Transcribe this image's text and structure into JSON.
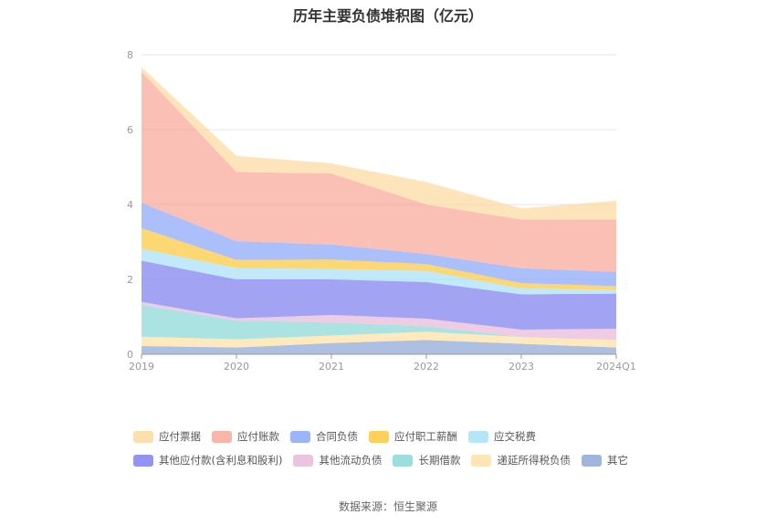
{
  "chart_data": {
    "type": "area",
    "stacked": true,
    "title": "历年主要负债堆积图（亿元）",
    "x": [
      "2019",
      "2020",
      "2021",
      "2022",
      "2023",
      "2024Q1"
    ],
    "ylim": [
      0,
      8
    ],
    "yticks": [
      0,
      2,
      4,
      6,
      8
    ],
    "grid": true,
    "legend_position": "bottom",
    "series": [
      {
        "name": "其它",
        "color": "#8fa8d6",
        "values": [
          0.22,
          0.18,
          0.3,
          0.38,
          0.28,
          0.18
        ]
      },
      {
        "name": "递延所得税负债",
        "color": "#ffe0a3",
        "values": [
          0.25,
          0.22,
          0.2,
          0.22,
          0.18,
          0.2
        ]
      },
      {
        "name": "长期借款",
        "color": "#8ad8d8",
        "values": [
          0.85,
          0.5,
          0.35,
          0.15,
          0.0,
          0.0
        ]
      },
      {
        "name": "其他流动负债",
        "color": "#e8b8d8",
        "values": [
          0.08,
          0.06,
          0.2,
          0.2,
          0.2,
          0.3
        ]
      },
      {
        "name": "其他应付款(含利息和股利)",
        "color": "#8080f0",
        "values": [
          1.1,
          1.04,
          0.95,
          0.98,
          0.94,
          0.94
        ]
      },
      {
        "name": "应交税费",
        "color": "#a8e0f8",
        "values": [
          0.32,
          0.3,
          0.28,
          0.3,
          0.16,
          0.1
        ]
      },
      {
        "name": "应付职工薪酬",
        "color": "#fcc83c",
        "values": [
          0.55,
          0.22,
          0.25,
          0.18,
          0.14,
          0.1
        ]
      },
      {
        "name": "合同负债",
        "color": "#8aa8f8",
        "values": [
          0.68,
          0.5,
          0.4,
          0.27,
          0.4,
          0.38
        ]
      },
      {
        "name": "应付账款",
        "color": "#f8a898",
        "values": [
          3.5,
          1.85,
          1.9,
          1.32,
          1.3,
          1.4
        ]
      },
      {
        "name": "应付票据",
        "color": "#fdd9a0",
        "values": [
          0.12,
          0.43,
          0.27,
          0.6,
          0.3,
          0.5
        ]
      }
    ],
    "legend_order": [
      "应付票据",
      "应付账款",
      "合同负债",
      "应付职工薪酬",
      "应交税费",
      "其他应付款(含利息和股利)",
      "其他流动负债",
      "长期借款",
      "递延所得税负债",
      "其它"
    ]
  },
  "source": "数据来源：恒生聚源"
}
